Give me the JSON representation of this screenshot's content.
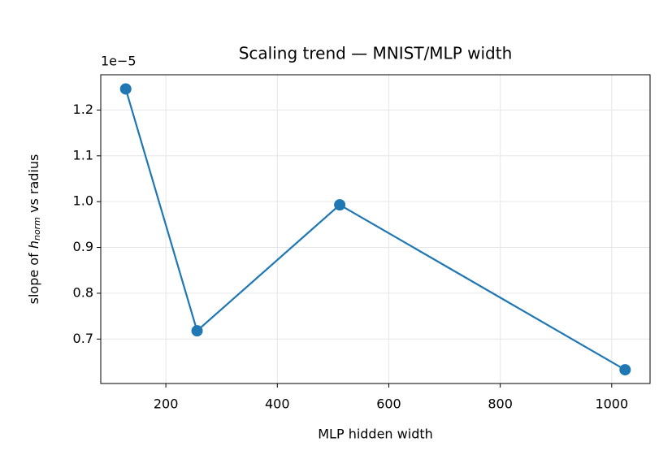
{
  "chart_data": {
    "type": "line",
    "title": "Scaling trend — MNIST/MLP width",
    "x_label": "MLP hidden width",
    "y_label": {
      "prefix": "slope of ",
      "symbol": "h",
      "subscript": "norm",
      "suffix": " vs radius"
    },
    "y_offset_label": "1e−5",
    "x": [
      128,
      256,
      512,
      1024
    ],
    "series": [
      {
        "color": "#1f77b4",
        "values": [
          1.246,
          0.718,
          0.993,
          0.633
        ]
      }
    ],
    "xlim": [
      83.2,
      1068.8
    ],
    "xticks": [
      200,
      400,
      600,
      800,
      1000
    ],
    "ylim": [
      0.603,
      1.277
    ],
    "yticks": [
      0.7,
      0.8,
      0.9,
      {
        "value": 1,
        "label": "1.0"
      },
      1.1,
      1.2
    ],
    "grid": true
  }
}
